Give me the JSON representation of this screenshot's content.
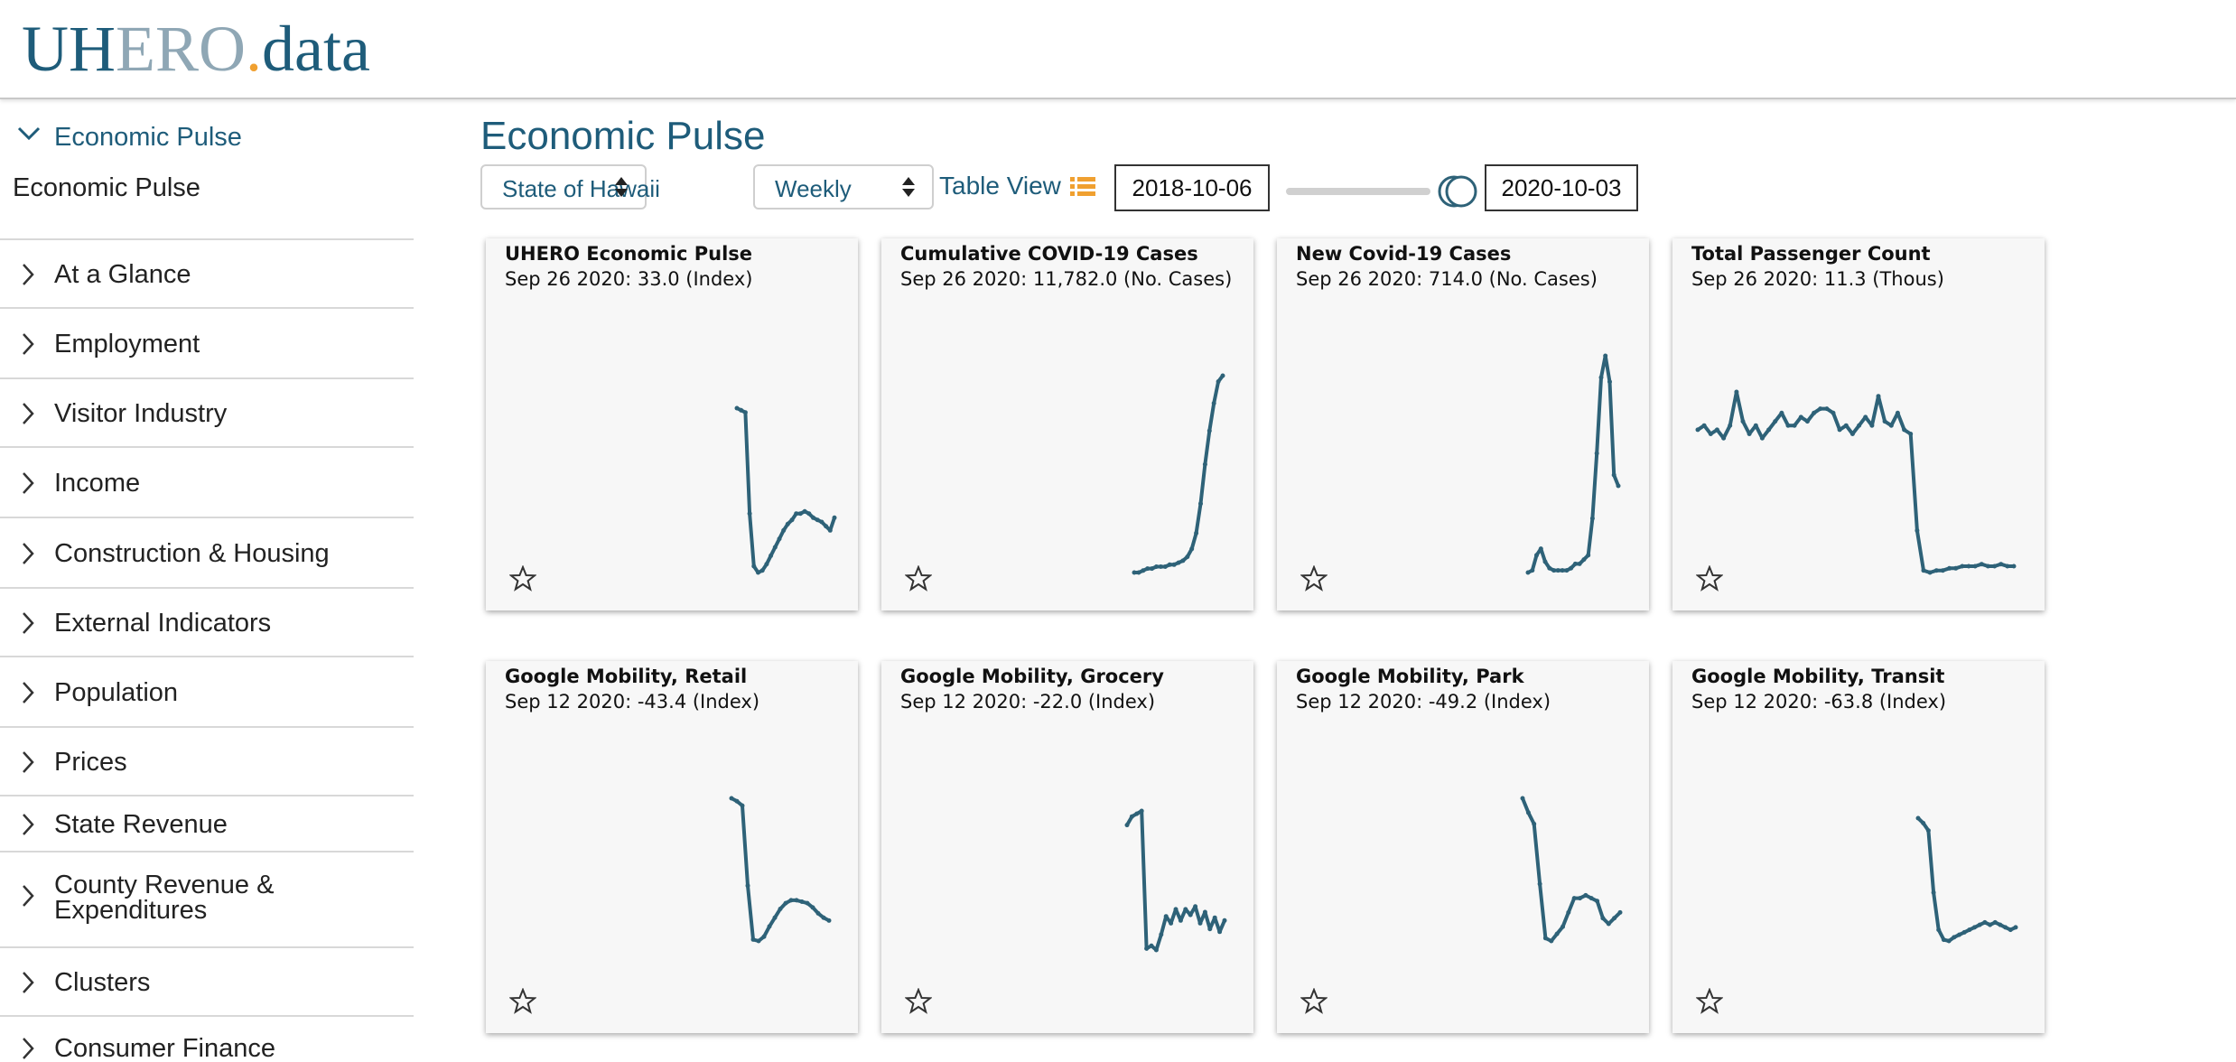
{
  "logo": {
    "part_a": "UH",
    "part_b": "ERO",
    "part_c": ".",
    "part_d": "data"
  },
  "sidebar": {
    "section_label": "Economic Pulse",
    "active_item": "Economic Pulse",
    "items": [
      {
        "label": "At a Glance"
      },
      {
        "label": "Employment"
      },
      {
        "label": "Visitor Industry"
      },
      {
        "label": "Income"
      },
      {
        "label": "Construction & Housing"
      },
      {
        "label": "External Indicators"
      },
      {
        "label": "Population"
      },
      {
        "label": "Prices"
      },
      {
        "label": "State Revenue"
      },
      {
        "label": "County Revenue &",
        "label2": "Expenditures"
      },
      {
        "label": "Clusters"
      },
      {
        "label": "Consumer Finance"
      }
    ]
  },
  "main": {
    "title": "Economic Pulse",
    "region_select": "State of Hawaii",
    "frequency_select": "Weekly",
    "table_view_label": "Table View",
    "start_date": "2018-10-06",
    "end_date": "2020-10-03"
  },
  "colors": {
    "accent": "#1e5c7a",
    "line": "#2e6278",
    "logo_dot": "#f0a030"
  },
  "cards": [
    {
      "title": "UHERO Economic Pulse",
      "value": "Sep 26 2020: 33.0 (Index)",
      "chart_data": {
        "type": "line",
        "values": [
          80,
          79,
          78,
          30,
          5,
          2,
          3,
          6,
          10,
          14,
          18,
          22,
          25,
          27,
          30,
          30,
          31,
          30,
          28,
          27,
          26,
          24,
          22,
          28
        ]
      }
    },
    {
      "title": "Cumulative COVID-19 Cases",
      "value": "Sep 26 2020: 11,782.0 (No. Cases)",
      "chart_data": {
        "type": "line",
        "values": [
          0,
          0,
          1,
          2,
          2,
          3,
          3,
          3,
          4,
          4,
          5,
          6,
          8,
          12,
          20,
          35,
          55,
          72,
          86,
          97,
          100
        ]
      }
    },
    {
      "title": "New Covid-19 Cases",
      "value": "Sep 26 2020: 714.0 (No. Cases)",
      "chart_data": {
        "type": "line",
        "values": [
          0,
          1,
          8,
          11,
          5,
          2,
          1,
          1,
          1,
          1,
          2,
          4,
          4,
          6,
          8,
          25,
          55,
          90,
          100,
          88,
          45,
          40
        ]
      }
    },
    {
      "title": "Total Passenger Count",
      "value": "Sep 26 2020: 11.3 (Thous)",
      "chart_data": {
        "type": "line",
        "values": [
          68,
          70,
          66,
          68,
          64,
          70,
          86,
          72,
          66,
          70,
          64,
          68,
          72,
          76,
          70,
          70,
          74,
          72,
          76,
          78,
          78,
          76,
          68,
          70,
          66,
          70,
          74,
          70,
          84,
          72,
          70,
          76,
          68,
          66,
          20,
          1,
          0,
          1,
          1,
          2,
          2,
          3,
          3,
          3,
          4,
          3,
          3,
          4,
          3,
          3
        ]
      }
    },
    {
      "title": "Google Mobility, Retail",
      "value": "Sep 12 2020: -43.4 (Index)",
      "chart_data": {
        "type": "line",
        "values": [
          100,
          98,
          95,
          40,
          3,
          2,
          5,
          12,
          18,
          24,
          28,
          30,
          30,
          29,
          28,
          25,
          21,
          18,
          16
        ]
      }
    },
    {
      "title": "Google Mobility, Grocery",
      "value": "Sep 12 2020: -22.0 (Index)",
      "chart_data": {
        "type": "line",
        "values": [
          90,
          96,
          98,
          100,
          2,
          4,
          1,
          12,
          25,
          20,
          30,
          22,
          30,
          26,
          32,
          20,
          28,
          16,
          24,
          14,
          22
        ]
      }
    },
    {
      "title": "Google Mobility, Park",
      "value": "Sep 12 2020: -49.2 (Index)",
      "chart_data": {
        "type": "line",
        "values": [
          100,
          90,
          82,
          40,
          2,
          0,
          5,
          10,
          20,
          30,
          30,
          32,
          30,
          28,
          16,
          12,
          16,
          20
        ]
      }
    },
    {
      "title": "Google Mobility, Transit",
      "value": "Sep 12 2020: -63.8 (Index)",
      "chart_data": {
        "type": "line",
        "values": [
          100,
          96,
          90,
          40,
          10,
          2,
          1,
          4,
          6,
          8,
          10,
          12,
          14,
          16,
          14,
          16,
          14,
          12,
          10,
          12
        ]
      }
    }
  ]
}
